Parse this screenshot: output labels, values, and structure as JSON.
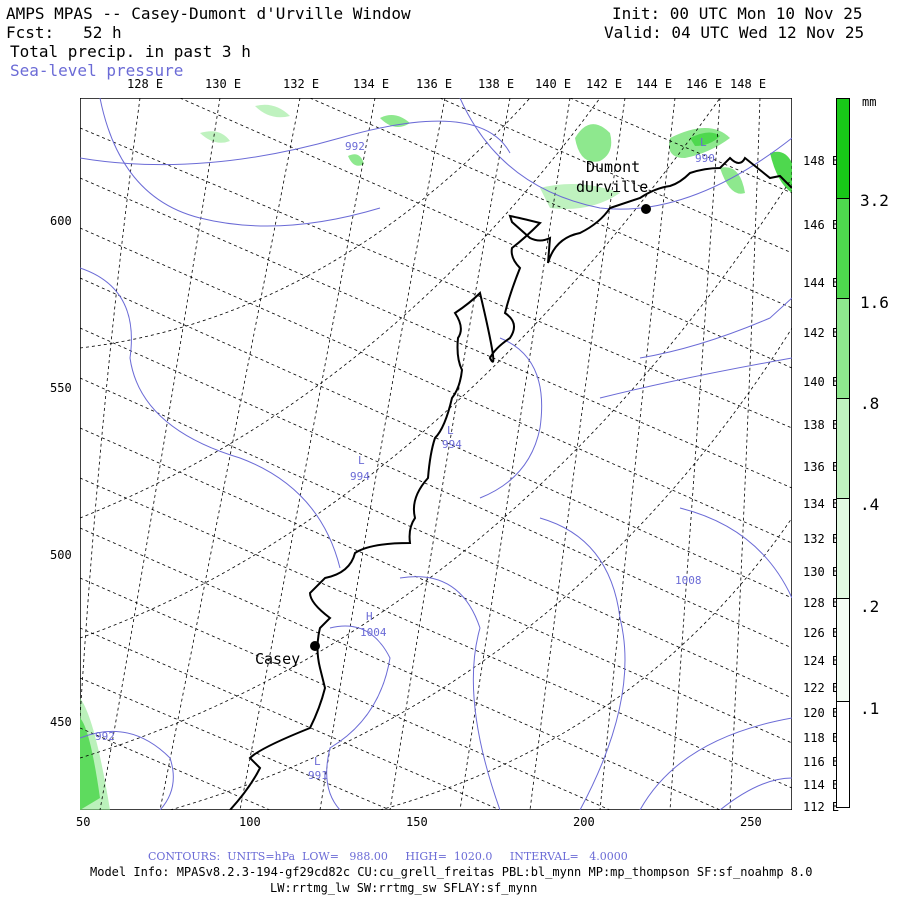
{
  "header": {
    "title": "AMPS MPAS -- Casey-Dumont d'Urville Window",
    "fcst": "Fcst:   52 h",
    "field1": "Total precip. in past 3 h",
    "field2": "Sea-level pressure",
    "init": "Init: 00 UTC Mon 10 Nov 25",
    "valid": "Valid: 04 UTC Wed 12 Nov 25"
  },
  "top_lon_labels": [
    "128 E",
    "130 E",
    "132 E",
    "134 E",
    "136 E",
    "138 E",
    "140 E",
    "142 E",
    "144 E",
    "146 E",
    "148 E"
  ],
  "right_lon_labels": [
    "148 E",
    "146 E",
    "144 E",
    "142 E",
    "140 E",
    "138 E",
    "136 E",
    "134 E",
    "132 E",
    "130 E",
    "128 E",
    "126 E",
    "124 E",
    "122 E",
    "120 E",
    "118 E",
    "116 E",
    "114 E",
    "112 E"
  ],
  "x_axis": [
    "50",
    "100",
    "150",
    "200",
    "250"
  ],
  "y_axis": [
    "600",
    "550",
    "500",
    "450"
  ],
  "stations": [
    {
      "name": "Dumont",
      "name2": "dUrville"
    },
    {
      "name": "Casey"
    }
  ],
  "pressure_labels": [
    "992",
    "990",
    "994",
    "994",
    "992",
    "991",
    "1004",
    "1008"
  ],
  "pressure_lows": [
    "L",
    "L",
    "L",
    "L"
  ],
  "pressure_highs": [
    "H"
  ],
  "colorbar": {
    "unit": "mm",
    "levels": [
      "3.2",
      "1.6",
      ".8",
      ".4",
      ".2",
      ".1"
    ],
    "colors": [
      "#18c818",
      "#4ed84e",
      "#8ee88e",
      "#bff2bf",
      "#e2fae2",
      "#f4fdf4"
    ]
  },
  "footer": {
    "contours": "CONTOURS:  UNITS=hPa  LOW=   988.00     HIGH=  1020.0     INTERVAL=   4.0000",
    "model1": "Model Info: MPASv8.2.3-194-gf29cd82c CU:cu_grell_freitas PBL:bl_mynn MP:mp_thompson SF:sf_noahmp 8.0",
    "model2": "LW:rrtmg_lw SW:rrtmg_sw SFLAY:sf_mynn"
  },
  "colors": {
    "contour": "#6b6bd6",
    "coast": "#000000",
    "precip": "#33cc33"
  }
}
